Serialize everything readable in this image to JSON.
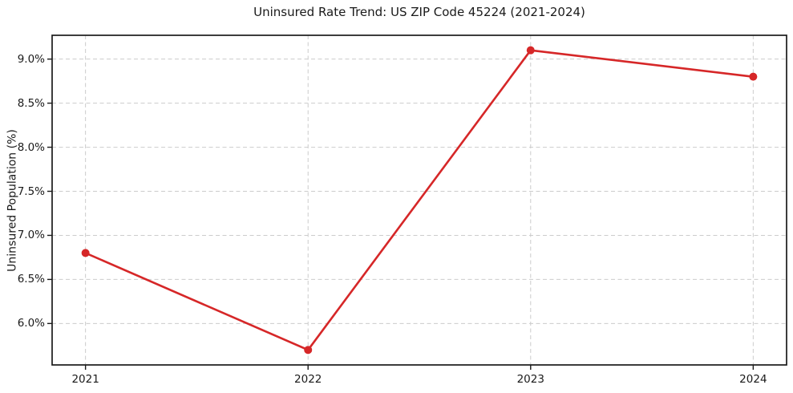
{
  "chart_data": {
    "type": "line",
    "title": "Uninsured Rate Trend: US ZIP Code 45224 (2021-2024)",
    "xlabel": "",
    "ylabel": "Uninsured Population (%)",
    "x": [
      2021,
      2022,
      2023,
      2024
    ],
    "xtick_labels": [
      "2021",
      "2022",
      "2023",
      "2024"
    ],
    "series": [
      {
        "values": [
          6.8,
          5.7,
          9.1,
          8.8
        ]
      }
    ],
    "xlim": [
      2020.85,
      2024.15
    ],
    "ylim": [
      5.53,
      9.27
    ],
    "yticks": [
      6.0,
      6.5,
      7.0,
      7.5,
      8.0,
      8.5,
      9.0
    ],
    "ytick_labels": [
      "6.0%",
      "6.5%",
      "7.0%",
      "7.5%",
      "8.0%",
      "8.5%",
      "9.0%"
    ],
    "grid": true,
    "grid_style": "dashed",
    "legend": false,
    "colors": {
      "line": "#d62728",
      "marker": "#d62728",
      "grid": "#cccccc",
      "axis": "#1a1a1a",
      "background": "#ffffff",
      "text": "#1a1a1a"
    }
  }
}
